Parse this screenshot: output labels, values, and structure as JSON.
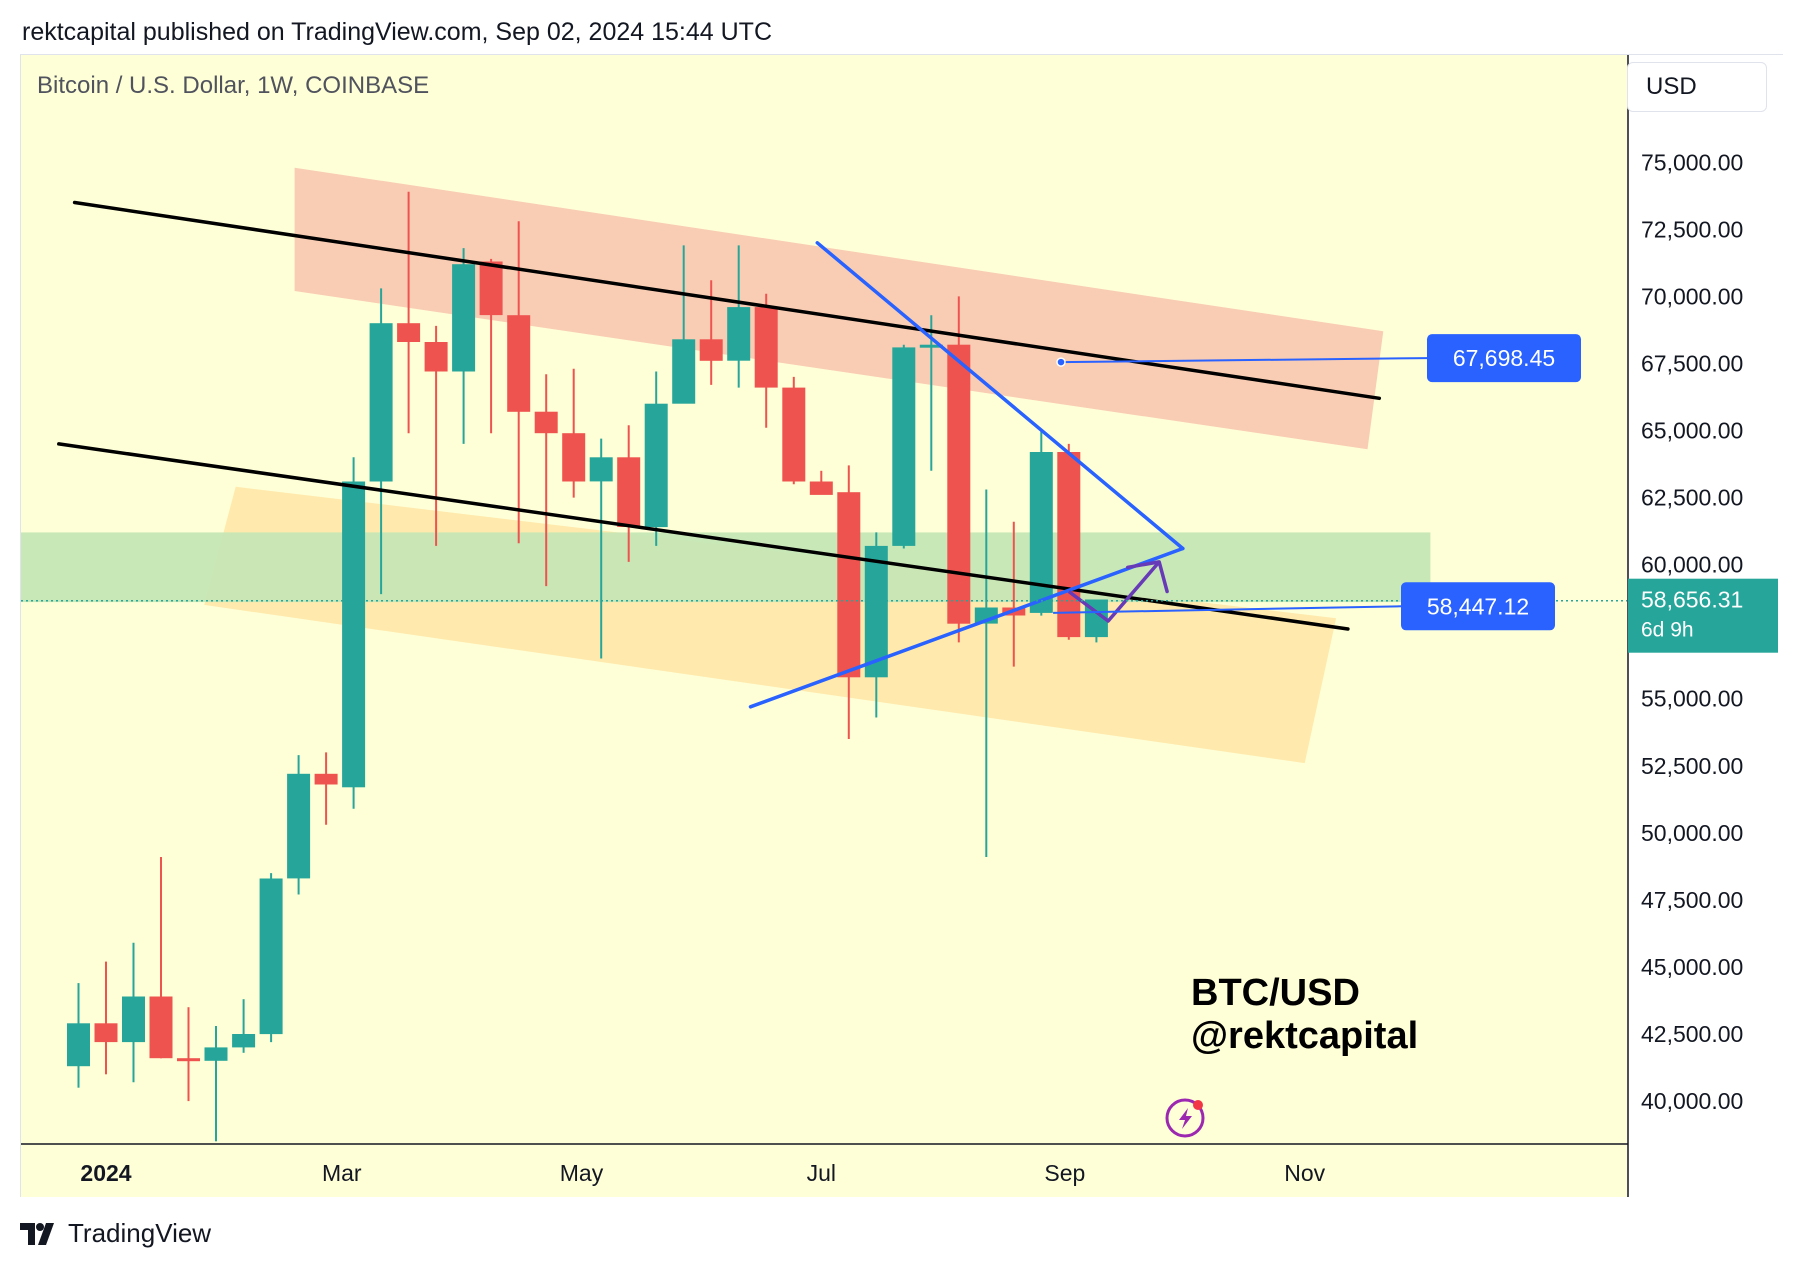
{
  "header": {
    "published_line": "rektcapital published on TradingView.com, Sep 02, 2024 15:44 UTC"
  },
  "toolbar": {
    "currency_label": "USD"
  },
  "footer": {
    "brand": "TradingView",
    "logo_icon": "tradingview-logo-icon"
  },
  "watermark": {
    "line1": "BTC/USD",
    "line2": "@rektcapital"
  },
  "colors": {
    "background": "#feffd6",
    "up": "#26a69a",
    "down": "#ef5350",
    "resistance_zone": "#f9cdb3",
    "support_zone": "#ffe5a4",
    "horizontal_zone": "#c3e6b5",
    "trendline": "#000000",
    "wedge": "#2962ff",
    "label": "#2962ff",
    "path_arrow": "#673ab7",
    "price_line": "#26a69a"
  },
  "chart_data": {
    "type": "candlestick",
    "title": "Bitcoin / U.S. Dollar, 1W, COINBASE",
    "symbol": "Bitcoin / U.S. Dollar",
    "interval": "1W",
    "exchange": "COINBASE",
    "ylim": [
      38400,
      79000
    ],
    "y_ticks": [
      "75,000.00",
      "72,500.00",
      "70,000.00",
      "67,500.00",
      "65,000.00",
      "62,500.00",
      "60,000.00",
      "55,000.00",
      "52,500.00",
      "50,000.00",
      "47,500.00",
      "45,000.00",
      "42,500.00",
      "40,000.00"
    ],
    "y_tick_values": [
      75000,
      72500,
      70000,
      67500,
      65000,
      62500,
      60000,
      55000,
      52500,
      50000,
      47500,
      45000,
      42500,
      40000
    ],
    "x_ticks": [
      "2024",
      "Mar",
      "May",
      "Jul",
      "Sep",
      "Nov"
    ],
    "x_tick_dates": [
      "2024-01-01",
      "2024-03-01",
      "2024-05-01",
      "2024-07-01",
      "2024-09-01",
      "2024-11-01"
    ],
    "current_price": {
      "value": 58656.31,
      "label": "58,656.31",
      "countdown": "6d 9h"
    },
    "candles": [
      {
        "date": "2023-12-25",
        "open": 41300,
        "high": 44400,
        "low": 40500,
        "close": 42900
      },
      {
        "date": "2024-01-01",
        "open": 42900,
        "high": 45200,
        "low": 41000,
        "close": 42200
      },
      {
        "date": "2024-01-08",
        "open": 42200,
        "high": 45900,
        "low": 40700,
        "close": 43900
      },
      {
        "date": "2024-01-15",
        "open": 43900,
        "high": 49100,
        "low": 41600,
        "close": 41600
      },
      {
        "date": "2024-01-22",
        "open": 41600,
        "high": 43500,
        "low": 40000,
        "close": 41500
      },
      {
        "date": "2024-01-29",
        "open": 41500,
        "high": 42800,
        "low": 38500,
        "close": 42000
      },
      {
        "date": "2024-02-05",
        "open": 42000,
        "high": 43800,
        "low": 41800,
        "close": 42500
      },
      {
        "date": "2024-02-12",
        "open": 42500,
        "high": 48500,
        "low": 42200,
        "close": 48300
      },
      {
        "date": "2024-02-19",
        "open": 48300,
        "high": 52900,
        "low": 47700,
        "close": 52200
      },
      {
        "date": "2024-02-26",
        "open": 52200,
        "high": 53000,
        "low": 50300,
        "close": 51800
      },
      {
        "date": "2024-03-04",
        "open": 51700,
        "high": 64000,
        "low": 50900,
        "close": 63100
      },
      {
        "date": "2024-03-11",
        "open": 63100,
        "high": 70300,
        "low": 58900,
        "close": 69000
      },
      {
        "date": "2024-03-18",
        "open": 69000,
        "high": 73900,
        "low": 64900,
        "close": 68300
      },
      {
        "date": "2024-03-25",
        "open": 68300,
        "high": 68900,
        "low": 60700,
        "close": 67200
      },
      {
        "date": "2024-04-01",
        "open": 67200,
        "high": 71800,
        "low": 64500,
        "close": 71200
      },
      {
        "date": "2024-04-08",
        "open": 71300,
        "high": 71400,
        "low": 64900,
        "close": 69300
      },
      {
        "date": "2024-04-15",
        "open": 69300,
        "high": 72800,
        "low": 60800,
        "close": 65700
      },
      {
        "date": "2024-04-22",
        "open": 65700,
        "high": 67100,
        "low": 59200,
        "close": 64900
      },
      {
        "date": "2024-04-29",
        "open": 64900,
        "high": 67300,
        "low": 62500,
        "close": 63100
      },
      {
        "date": "2024-05-06",
        "open": 63100,
        "high": 64700,
        "low": 56500,
        "close": 64000
      },
      {
        "date": "2024-05-13",
        "open": 64000,
        "high": 65200,
        "low": 60100,
        "close": 61400
      },
      {
        "date": "2024-05-20",
        "open": 61400,
        "high": 67200,
        "low": 60700,
        "close": 66000
      },
      {
        "date": "2024-05-27",
        "open": 66000,
        "high": 71900,
        "low": 66100,
        "close": 68400
      },
      {
        "date": "2024-06-03",
        "open": 68400,
        "high": 70600,
        "low": 66700,
        "close": 67600
      },
      {
        "date": "2024-06-10",
        "open": 67600,
        "high": 71900,
        "low": 66600,
        "close": 69600
      },
      {
        "date": "2024-06-17",
        "open": 69600,
        "high": 70100,
        "low": 65100,
        "close": 66600
      },
      {
        "date": "2024-06-24",
        "open": 66600,
        "high": 67000,
        "low": 63000,
        "close": 63100
      },
      {
        "date": "2024-07-01",
        "open": 63100,
        "high": 63500,
        "low": 62800,
        "close": 62600
      },
      {
        "date": "2024-07-08",
        "open": 62700,
        "high": 63700,
        "low": 53500,
        "close": 55800
      },
      {
        "date": "2024-07-15",
        "open": 55800,
        "high": 61200,
        "low": 54300,
        "close": 60700
      },
      {
        "date": "2024-07-22",
        "open": 60700,
        "high": 68200,
        "low": 60600,
        "close": 68100
      },
      {
        "date": "2024-07-29",
        "open": 68100,
        "high": 69300,
        "low": 63500,
        "close": 68200
      },
      {
        "date": "2024-08-05",
        "open": 68200,
        "high": 70000,
        "low": 57100,
        "close": 57800
      },
      {
        "date": "2024-08-12",
        "open": 57800,
        "high": 62800,
        "low": 49100,
        "close": 58400
      },
      {
        "date": "2024-08-19",
        "open": 58400,
        "high": 61600,
        "low": 56200,
        "close": 58100
      },
      {
        "date": "2024-08-26",
        "open": 58200,
        "high": 65000,
        "low": 58100,
        "close": 64200
      },
      {
        "date": "2024-09-02",
        "open": 64200,
        "high": 64500,
        "low": 57200,
        "close": 57300
      },
      {
        "date": "2024-09-09",
        "open": 57300,
        "high": 58600,
        "low": 57100,
        "close": 58700
      }
    ],
    "zones": [
      {
        "name": "resistance-channel-zone"
      },
      {
        "name": "support-channel-zone"
      },
      {
        "name": "horizontal-support-zone"
      }
    ],
    "price_labels": [
      {
        "name": "upper-target-label",
        "value": 67698.45,
        "text": "67,698.45"
      },
      {
        "name": "lower-target-label",
        "value": 58447.12,
        "text": "58,447.12"
      }
    ]
  }
}
